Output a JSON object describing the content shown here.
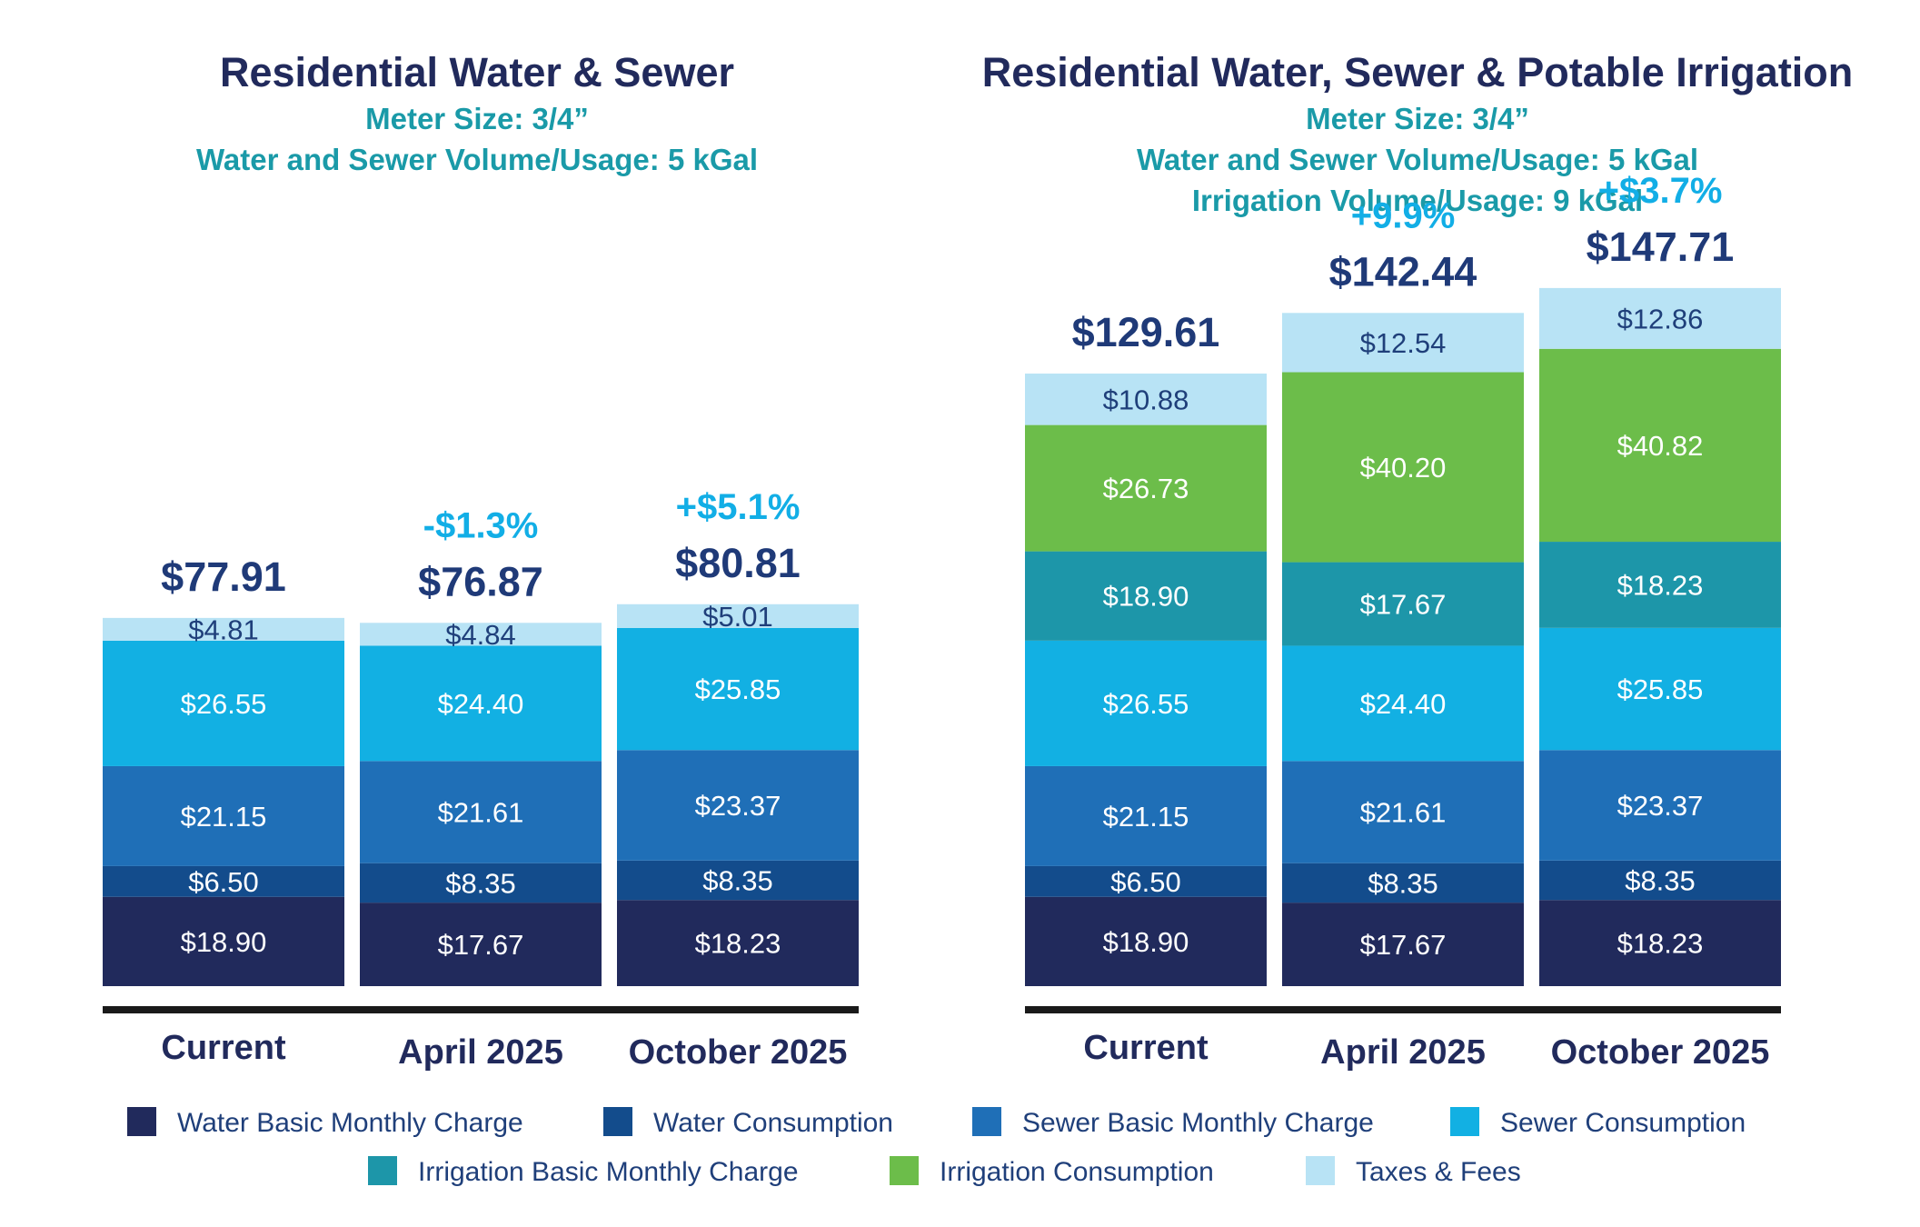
{
  "legend": [
    {
      "name": "Water Basic Monthly Charge",
      "color": "#212a5c"
    },
    {
      "name": "Water Consumption",
      "color": "#134c8c"
    },
    {
      "name": "Sewer Basic Monthly Charge",
      "color": "#1f6fb7"
    },
    {
      "name": "Sewer Consumption",
      "color": "#12b0e3"
    },
    {
      "name": "Irrigation Basic Monthly Charge",
      "color": "#1d96a9"
    },
    {
      "name": "Irrigation Consumption",
      "color": "#6cbd4a"
    },
    {
      "name": "Taxes & Fees",
      "color": "#b8e3f5"
    }
  ],
  "chart_data": [
    {
      "type": "bar",
      "stacked": true,
      "title": "Residential Water & Sewer",
      "subtitles": [
        "Meter Size: 3/4”",
        "Water and Sewer Volume/Usage: 5 kGal"
      ],
      "categories": [
        "Current",
        "April 2025",
        "October 2025"
      ],
      "totals": [
        "$77.91",
        "$76.87",
        "$80.81"
      ],
      "changes": [
        "",
        "-$1.3%",
        "+$5.1%"
      ],
      "series": [
        {
          "name": "Water Basic Monthly Charge",
          "color": "#212a5c",
          "values": [
            18.9,
            17.67,
            18.23
          ],
          "labels": [
            "$18.90",
            "$17.67",
            "$18.23"
          ]
        },
        {
          "name": "Water Consumption",
          "color": "#134c8c",
          "values": [
            6.5,
            8.35,
            8.35
          ],
          "labels": [
            "$6.50",
            "$8.35",
            "$8.35"
          ]
        },
        {
          "name": "Sewer Basic Monthly Charge",
          "color": "#1f6fb7",
          "values": [
            21.15,
            21.61,
            23.37
          ],
          "labels": [
            "$21.15",
            "$21.61",
            "$23.37"
          ]
        },
        {
          "name": "Sewer Consumption",
          "color": "#12b0e3",
          "values": [
            26.55,
            24.4,
            25.85
          ],
          "labels": [
            "$26.55",
            "$24.40",
            "$25.85"
          ]
        },
        {
          "name": "Taxes & Fees",
          "color": "#b8e3f5",
          "values": [
            4.81,
            4.84,
            5.01
          ],
          "labels": [
            "$4.81",
            "$4.84",
            "$5.01"
          ]
        }
      ]
    },
    {
      "type": "bar",
      "stacked": true,
      "title": "Residential Water, Sewer & Potable Irrigation",
      "subtitles": [
        "Meter Size: 3/4”",
        "Water and Sewer Volume/Usage: 5 kGal",
        "Irrigation Volume/Usage: 9 kGal"
      ],
      "categories": [
        "Current",
        "April 2025",
        "October 2025"
      ],
      "totals": [
        "$129.61",
        "$142.44",
        "$147.71"
      ],
      "changes": [
        "",
        "+9.9%",
        "+$3.7%"
      ],
      "series": [
        {
          "name": "Water Basic Monthly Charge",
          "color": "#212a5c",
          "values": [
            18.9,
            17.67,
            18.23
          ],
          "labels": [
            "$18.90",
            "$17.67",
            "$18.23"
          ]
        },
        {
          "name": "Water Consumption",
          "color": "#134c8c",
          "values": [
            6.5,
            8.35,
            8.35
          ],
          "labels": [
            "$6.50",
            "$8.35",
            "$8.35"
          ]
        },
        {
          "name": "Sewer Basic Monthly Charge",
          "color": "#1f6fb7",
          "values": [
            21.15,
            21.61,
            23.37
          ],
          "labels": [
            "$21.15",
            "$21.61",
            "$23.37"
          ]
        },
        {
          "name": "Sewer Consumption",
          "color": "#12b0e3",
          "values": [
            26.55,
            24.4,
            25.85
          ],
          "labels": [
            "$26.55",
            "$24.40",
            "$25.85"
          ]
        },
        {
          "name": "Irrigation Basic Monthly Charge",
          "color": "#1d96a9",
          "values": [
            18.9,
            17.67,
            18.23
          ],
          "labels": [
            "$18.90",
            "$17.67",
            "$18.23"
          ]
        },
        {
          "name": "Irrigation Consumption",
          "color": "#6cbd4a",
          "values": [
            26.73,
            40.2,
            40.82
          ],
          "labels": [
            "$26.73",
            "$40.20",
            "$40.82"
          ]
        },
        {
          "name": "Taxes & Fees",
          "color": "#b8e3f5",
          "values": [
            10.88,
            12.54,
            12.86
          ],
          "labels": [
            "$10.88",
            "$12.54",
            "$12.86"
          ]
        }
      ]
    }
  ]
}
